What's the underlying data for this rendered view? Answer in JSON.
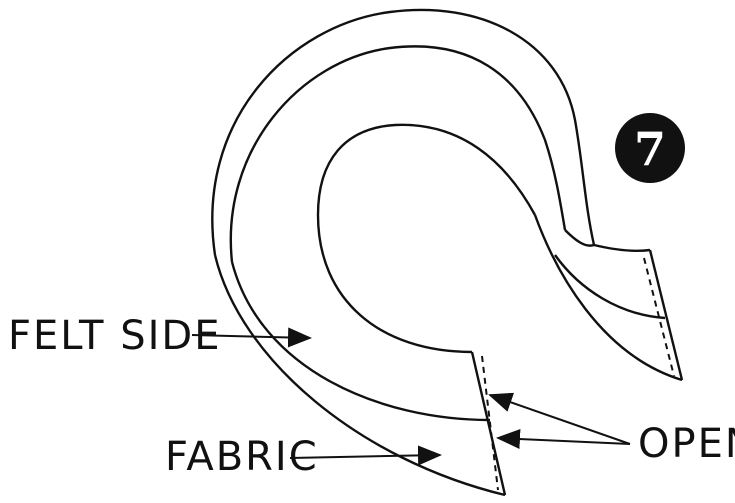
{
  "figure": {
    "step_number": "7",
    "labels": {
      "felt_side": "FELT SIDE",
      "fabric": "FABRIC",
      "open": "OPEN"
    },
    "colors": {
      "ink": "#111111",
      "paper": "#ffffff"
    }
  }
}
